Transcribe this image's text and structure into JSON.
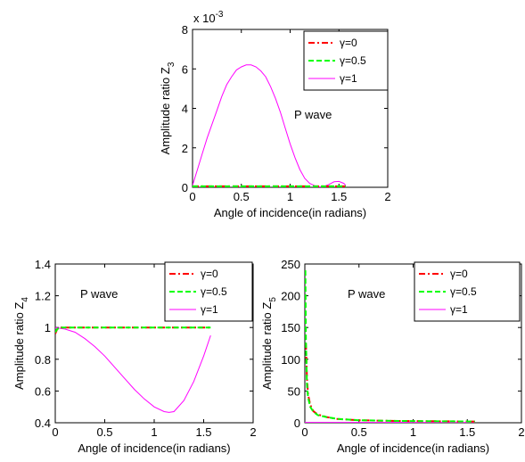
{
  "chart_data": [
    {
      "type": "line",
      "xlabel": "Angle of incidence(in radians)",
      "ylabel": "Amplitude ratio",
      "ylabel_var": "Z",
      "ylabel_sub": "3",
      "multiplier_base": "x 10",
      "multiplier_exp": "-3",
      "xlim": [
        0,
        2
      ],
      "ylim": [
        0,
        8
      ],
      "xticks": [
        "0",
        "0.5",
        "1",
        "1.5",
        "2"
      ],
      "yticks": [
        "0",
        "2",
        "4",
        "6",
        "8"
      ],
      "annotation": "P wave",
      "legend_position": "top-right",
      "series": [
        {
          "name": "γ=0",
          "color": "#ff0000",
          "style": "dashdot",
          "x": [
            0,
            0.3,
            0.6,
            0.9,
            1.2,
            1.57
          ],
          "y": [
            0.05,
            0.05,
            0.05,
            0.05,
            0.05,
            0.05
          ]
        },
        {
          "name": "γ=0.5",
          "color": "#00ff00",
          "style": "dashed",
          "x": [
            0,
            0.3,
            0.6,
            0.9,
            1.2,
            1.57
          ],
          "y": [
            0.05,
            0.05,
            0.05,
            0.05,
            0.05,
            0.05
          ]
        },
        {
          "name": "γ=1",
          "color": "#ff00ff",
          "style": "solid",
          "x": [
            0,
            0.05,
            0.1,
            0.15,
            0.2,
            0.25,
            0.3,
            0.35,
            0.4,
            0.45,
            0.5,
            0.55,
            0.6,
            0.65,
            0.7,
            0.75,
            0.8,
            0.85,
            0.9,
            0.95,
            1.0,
            1.05,
            1.1,
            1.15,
            1.2,
            1.25,
            1.3,
            1.35,
            1.4,
            1.45,
            1.5,
            1.55,
            1.57
          ],
          "y": [
            0.1,
            0.9,
            1.7,
            2.5,
            3.2,
            3.9,
            4.6,
            5.2,
            5.6,
            5.95,
            6.1,
            6.2,
            6.2,
            6.1,
            5.9,
            5.6,
            5.1,
            4.5,
            3.8,
            3.0,
            2.2,
            1.5,
            0.9,
            0.45,
            0.2,
            0.08,
            0.02,
            0.05,
            0.15,
            0.28,
            0.3,
            0.2,
            0.1
          ]
        }
      ]
    },
    {
      "type": "line",
      "xlabel": "Angle of incidence(in radians)",
      "ylabel": "Amplitude ratio",
      "ylabel_var": "Z",
      "ylabel_sub": "4",
      "xlim": [
        0,
        2
      ],
      "ylim": [
        0.4,
        1.4
      ],
      "xticks": [
        "0",
        "0.5",
        "1",
        "1.5",
        "2"
      ],
      "yticks": [
        "0.4",
        "0.6",
        "0.8",
        "1",
        "1.2",
        "1.4"
      ],
      "annotation": "P wave",
      "legend_position": "top-right",
      "series": [
        {
          "name": "γ=0",
          "color": "#ff0000",
          "style": "dashdot",
          "x": [
            0,
            0.02,
            0.05,
            0.3,
            0.6,
            0.9,
            1.2,
            1.57
          ],
          "y": [
            0.96,
            0.99,
            1.0,
            1.0,
            1.0,
            1.0,
            1.0,
            1.0
          ]
        },
        {
          "name": "γ=0.5",
          "color": "#00ff00",
          "style": "dashed",
          "x": [
            0,
            0.02,
            0.05,
            0.3,
            0.6,
            0.9,
            1.2,
            1.57
          ],
          "y": [
            0.97,
            0.99,
            1.0,
            1.0,
            1.0,
            1.0,
            1.0,
            1.0
          ]
        },
        {
          "name": "γ=1",
          "color": "#ff00ff",
          "style": "solid",
          "x": [
            0,
            0.1,
            0.2,
            0.3,
            0.4,
            0.5,
            0.6,
            0.7,
            0.8,
            0.9,
            1.0,
            1.1,
            1.15,
            1.2,
            1.3,
            1.4,
            1.5,
            1.57
          ],
          "y": [
            1.0,
            0.99,
            0.97,
            0.93,
            0.88,
            0.82,
            0.75,
            0.68,
            0.61,
            0.55,
            0.5,
            0.47,
            0.465,
            0.47,
            0.54,
            0.66,
            0.82,
            0.95
          ]
        }
      ]
    },
    {
      "type": "line",
      "xlabel": "Angle of incidence(in radians)",
      "ylabel": "Amplitude ratio",
      "ylabel_var": "Z",
      "ylabel_sub": "5",
      "xlim": [
        0,
        2
      ],
      "ylim": [
        0,
        250
      ],
      "xticks": [
        "0",
        "0.5",
        "1",
        "1.5",
        "2"
      ],
      "yticks": [
        "0",
        "50",
        "100",
        "150",
        "200",
        "250"
      ],
      "annotation": "P wave",
      "legend_position": "top-right",
      "series": [
        {
          "name": "γ=0",
          "color": "#ff0000",
          "style": "dashdot",
          "x": [
            0.01,
            0.02,
            0.03,
            0.05,
            0.08,
            0.12,
            0.2,
            0.3,
            0.5,
            0.8,
            1.1,
            1.57
          ],
          "y": [
            125,
            70,
            45,
            28,
            18,
            13,
            9,
            6,
            4,
            3,
            2.5,
            2
          ]
        },
        {
          "name": "γ=0.5",
          "color": "#00ff00",
          "style": "dashed",
          "x": [
            0.005,
            0.01,
            0.02,
            0.03,
            0.05,
            0.08,
            0.12,
            0.2,
            0.3,
            0.5,
            0.8,
            1.1,
            1.57
          ],
          "y": [
            240,
            130,
            60,
            40,
            25,
            17,
            12,
            9,
            6,
            4,
            3,
            2.5,
            2
          ]
        },
        {
          "name": "γ=1",
          "color": "#ff00ff",
          "style": "solid",
          "x": [
            0,
            0.5,
            1.0,
            1.57
          ],
          "y": [
            0.5,
            0.5,
            0.5,
            0.5
          ]
        }
      ]
    }
  ]
}
